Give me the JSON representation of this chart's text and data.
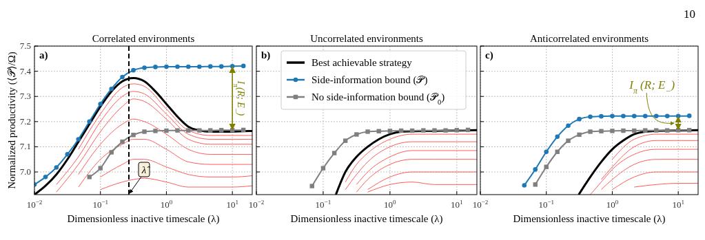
{
  "chart_data": [
    {
      "type": "line",
      "title": "Correlated environments",
      "xlabel": "Dimensionless inactive timescale (λ)",
      "ylabel": "Normalized productivity (⟨𝒫⟩/Ω)",
      "log": "x",
      "grid": true,
      "xlim": [
        0.01,
        20
      ],
      "ylim": [
        6.91,
        7.5
      ],
      "xticks": [
        {
          "value": 0.01,
          "label": "10$^{−2}$"
        },
        {
          "value": 0.1,
          "label": "10$^{−1}$"
        },
        {
          "value": 1,
          "label": "10$^{0}$"
        },
        {
          "value": 10,
          "label": "10$^{1}$"
        }
      ],
      "yticks": [
        {
          "value": 7,
          "label": "7.0"
        },
        7.1,
        7.2,
        7.3,
        7.4,
        7.5
      ],
      "annotations": [
        "a)",
        "I$_{π}$(R; E$_{−}$)"
      ],
      "ref_lines": [
        {
          "axis": "x",
          "value": 0.27,
          "label": "λ̂",
          "color": "#000000",
          "line_style": "dashed"
        }
      ],
      "series": [
        {
          "color": "#ff5a5a",
          "x": [
            0.0464,
            0.1,
            0.215,
            0.316,
            0.464,
            1,
            2.15,
            4.64,
            10,
            20
          ],
          "values": [
            7.09,
            7.23,
            7.335,
            7.35,
            7.34,
            7.25,
            7.165,
            7.145,
            7.145,
            7.145
          ]
        },
        {
          "color": "#ff5a5a",
          "x": [
            0.0215,
            0.0464,
            0.1,
            0.215,
            0.316,
            0.464,
            1,
            2.15,
            4.64,
            10,
            20
          ],
          "values": [
            6.95,
            7.06,
            7.2,
            7.3,
            7.32,
            7.31,
            7.23,
            7.15,
            7.13,
            7.13,
            7.13
          ]
        },
        {
          "color": "#ff5a5a",
          "x": [
            0.0215,
            0.0464,
            0.1,
            0.215,
            0.316,
            0.464,
            1,
            2.15,
            4.64,
            10,
            20
          ],
          "values": [
            6.92,
            7.03,
            7.16,
            7.26,
            7.29,
            7.28,
            7.21,
            7.13,
            7.11,
            7.11,
            7.11
          ]
        },
        {
          "color": "#ff5a5a",
          "x": [
            0.0464,
            0.1,
            0.215,
            0.316,
            0.464,
            1,
            2.15,
            4.64,
            10,
            20
          ],
          "values": [
            6.99,
            7.11,
            7.19,
            7.21,
            7.2,
            7.15,
            7.09,
            7.07,
            7.07,
            7.07
          ]
        },
        {
          "color": "#ff5a5a",
          "x": [
            0.0464,
            0.1,
            0.215,
            0.316,
            0.464,
            1,
            2.15,
            4.64,
            10,
            20
          ],
          "values": [
            6.94,
            7.05,
            7.11,
            7.13,
            7.13,
            7.09,
            7.04,
            7.03,
            7.03,
            7.03
          ]
        },
        {
          "color": "#ff5a5a",
          "x": [
            0.1,
            0.215,
            0.316,
            0.464,
            1,
            2.15,
            4.64,
            10,
            20
          ],
          "values": [
            6.98,
            7.03,
            7.05,
            7.05,
            7.02,
            6.99,
            6.98,
            6.98,
            6.985
          ]
        },
        {
          "color": "#ff5a5a",
          "x": [
            0.1,
            0.215,
            0.316,
            0.464,
            1,
            2.15,
            4.64,
            10,
            20
          ],
          "values": [
            6.93,
            6.96,
            6.97,
            6.975,
            6.96,
            6.94,
            6.94,
            6.94,
            6.945
          ]
        },
        {
          "color": "#000000",
          "x": [
            0.01,
            0.0147,
            0.0215,
            0.0316,
            0.0464,
            0.0681,
            0.1,
            0.147,
            0.215,
            0.316,
            0.464,
            0.681,
            1,
            1.47,
            2.15,
            3.16,
            4.64,
            6.81,
            10,
            14.7,
            20
          ],
          "values": [
            6.91,
            6.945,
            6.99,
            7.05,
            7.12,
            7.19,
            7.26,
            7.32,
            7.36,
            7.373,
            7.36,
            7.32,
            7.27,
            7.22,
            7.18,
            7.165,
            7.16,
            7.16,
            7.16,
            7.162,
            7.163
          ]
        },
        {
          "color": "#7f7f7f",
          "marker": "square",
          "x": [
            0.0681,
            0.1,
            0.147,
            0.215,
            0.316,
            0.464,
            0.681,
            1,
            1.47,
            2.15,
            3.16,
            4.64,
            6.81,
            10,
            14.7
          ],
          "values": [
            6.98,
            7.015,
            7.078,
            7.12,
            7.147,
            7.16,
            7.163,
            7.164,
            7.165,
            7.165,
            7.165,
            7.165,
            7.166,
            7.166,
            7.167
          ]
        },
        {
          "color": "#1f77b4",
          "marker": "circle",
          "x": [
            0.01,
            0.0147,
            0.0215,
            0.0316,
            0.0464,
            0.0681,
            0.1,
            0.147,
            0.215,
            0.316,
            0.464,
            0.681,
            1,
            1.47,
            2.15,
            3.16,
            4.64,
            6.81,
            10,
            14.7
          ],
          "values": [
            6.95,
            6.98,
            7.018,
            7.07,
            7.13,
            7.2,
            7.27,
            7.33,
            7.377,
            7.404,
            7.414,
            7.417,
            7.418,
            7.418,
            7.418,
            7.418,
            7.419,
            7.419,
            7.42,
            7.421
          ]
        }
      ]
    },
    {
      "type": "line",
      "title": "Uncorrelated environments",
      "xlabel": "Dimensionless inactive timescale (λ)",
      "log": "x",
      "grid": true,
      "legend": "top",
      "tick_labels": "x",
      "xlim": [
        0.01,
        20
      ],
      "ylim": [
        6.91,
        7.5
      ],
      "xticks": [
        {
          "value": 0.01,
          "label": "10$^{−2}$"
        },
        {
          "value": 0.1,
          "label": "10$^{−1}$"
        },
        {
          "value": 1,
          "label": "10$^{0}$"
        },
        {
          "value": 10,
          "label": "10$^{1}$"
        }
      ],
      "yticks": [
        7,
        7.1,
        7.2,
        7.3,
        7.4,
        7.5
      ],
      "annotations": [
        "b)"
      ],
      "series": [
        {
          "color": "#ff5a5a",
          "x": [
            0.215,
            0.316,
            0.464,
            1,
            2.15,
            4.64,
            10,
            20
          ],
          "values": [
            6.96,
            7.03,
            7.075,
            7.13,
            7.15,
            7.15,
            7.15,
            7.15
          ]
        },
        {
          "color": "#ff5a5a",
          "x": [
            0.215,
            0.316,
            0.464,
            1,
            2.15,
            4.64,
            10,
            20
          ],
          "values": [
            6.93,
            6.99,
            7.04,
            7.1,
            7.12,
            7.12,
            7.12,
            7.12
          ]
        },
        {
          "color": "#ff5a5a",
          "x": [
            0.316,
            0.464,
            1,
            2.15,
            4.64,
            10,
            20
          ],
          "values": [
            6.95,
            7.0,
            7.06,
            7.085,
            7.085,
            7.085,
            7.085
          ]
        },
        {
          "color": "#ff5a5a",
          "x": [
            0.316,
            0.464,
            1,
            2.15,
            4.64,
            10,
            20
          ],
          "values": [
            6.92,
            6.97,
            7.03,
            7.05,
            7.05,
            7.05,
            7.05
          ]
        },
        {
          "color": "#ff5a5a",
          "x": [
            0.464,
            1,
            2.15,
            4.64,
            10,
            20
          ],
          "values": [
            6.93,
            6.98,
            7.0,
            7.0,
            7.0,
            7.0
          ]
        },
        {
          "color": "#ff5a5a",
          "x": [
            0.464,
            1,
            2.15,
            4.64,
            10,
            20
          ],
          "values": [
            6.92,
            6.95,
            6.96,
            6.95,
            6.95,
            6.95
          ]
        },
        {
          "name": "Best achievable strategy",
          "color": "#000000",
          "x": [
            0.155,
            0.215,
            0.316,
            0.464,
            0.681,
            1,
            1.47,
            2.15,
            4.64,
            10,
            20
          ],
          "values": [
            6.91,
            7.0,
            7.06,
            7.1,
            7.13,
            7.15,
            7.16,
            7.162,
            7.163,
            7.165,
            7.166
          ]
        },
        {
          "name": "Side-information bound (𝒫)",
          "color": "#1f77b4",
          "marker": "circle"
        },
        {
          "name": "No side-information bound (𝒫$_{0}$)",
          "color": "#7f7f7f",
          "marker": "square",
          "x": [
            0.0681,
            0.1,
            0.147,
            0.215,
            0.316,
            0.464,
            0.681,
            1,
            1.47,
            2.15,
            3.16,
            4.64,
            6.81,
            10,
            14.7
          ],
          "values": [
            6.944,
            7.015,
            7.075,
            7.124,
            7.149,
            7.16,
            7.162,
            7.163,
            7.164,
            7.164,
            7.165,
            7.165,
            7.165,
            7.166,
            7.167
          ]
        }
      ]
    },
    {
      "type": "line",
      "title": "Anticorrelated environments",
      "xlabel": "Dimensionless inactive timescale (λ)",
      "log": "x",
      "grid": true,
      "tick_labels": "x",
      "xlim": [
        0.01,
        20
      ],
      "ylim": [
        6.91,
        7.5
      ],
      "xticks": [
        {
          "value": 0.01,
          "label": "10$^{−2}$"
        },
        {
          "value": 0.1,
          "label": "10$^{−1}$"
        },
        {
          "value": 1,
          "label": "10$^{0}$"
        },
        {
          "value": 10,
          "label": "10$^{1}$"
        }
      ],
      "yticks": [
        7,
        7.1,
        7.2,
        7.3,
        7.4,
        7.5
      ],
      "annotations": [
        "c)",
        "I$_{π}$ (R; E$_{−}$)",
        "10"
      ],
      "series": [
        {
          "color": "#ff5a5a",
          "x": [
            1,
            2.15,
            4.64,
            10,
            20
          ],
          "values": [
            7.05,
            7.13,
            7.15,
            7.15,
            7.15
          ]
        },
        {
          "color": "#ff5a5a",
          "x": [
            0.681,
            1,
            2.15,
            4.64,
            10,
            20
          ],
          "values": [
            6.97,
            7.02,
            7.1,
            7.125,
            7.125,
            7.125
          ]
        },
        {
          "color": "#ff5a5a",
          "x": [
            0.464,
            0.681,
            1,
            2.15,
            4.64,
            10,
            20
          ],
          "values": [
            6.91,
            6.96,
            7.01,
            7.07,
            7.09,
            7.09,
            7.09
          ]
        },
        {
          "color": "#ff5a5a",
          "x": [
            0.681,
            1,
            2.15,
            4.64,
            10,
            20
          ],
          "values": [
            6.93,
            6.97,
            7.03,
            7.05,
            7.05,
            7.05
          ]
        },
        {
          "color": "#ff5a5a",
          "x": [
            1,
            2.15,
            4.64,
            10,
            20
          ],
          "values": [
            6.93,
            6.98,
            7.0,
            7.0,
            7.0
          ]
        },
        {
          "color": "#ff5a5a",
          "x": [
            2.15,
            4.64,
            10,
            20
          ],
          "values": [
            6.94,
            6.95,
            6.955,
            6.955
          ]
        },
        {
          "color": "#000000",
          "x": [
            0.31,
            0.464,
            0.681,
            1,
            1.47,
            2.15,
            3.16,
            4.64,
            10,
            20
          ],
          "values": [
            6.91,
            6.98,
            7.04,
            7.09,
            7.125,
            7.15,
            7.16,
            7.163,
            7.165,
            7.166
          ]
        },
        {
          "color": "#7f7f7f",
          "marker": "square",
          "x": [
            0.0681,
            0.1,
            0.147,
            0.215,
            0.316,
            0.464,
            0.681,
            1,
            1.47,
            2.15,
            3.16,
            4.64,
            6.81,
            10,
            14.7
          ],
          "values": [
            6.95,
            7.02,
            7.08,
            7.124,
            7.148,
            7.16,
            7.162,
            7.163,
            7.164,
            7.164,
            7.165,
            7.165,
            7.165,
            7.166,
            7.166
          ]
        },
        {
          "color": "#1f77b4",
          "marker": "circle",
          "x": [
            0.0464,
            0.0681,
            0.1,
            0.147,
            0.215,
            0.316,
            0.464,
            0.681,
            1,
            1.47,
            2.15,
            3.16,
            4.64,
            6.81,
            10,
            14.7
          ],
          "values": [
            6.947,
            7.01,
            7.08,
            7.14,
            7.184,
            7.21,
            7.219,
            7.221,
            7.222,
            7.222,
            7.222,
            7.222,
            7.222,
            7.222,
            7.222,
            7.223
          ]
        }
      ]
    }
  ]
}
